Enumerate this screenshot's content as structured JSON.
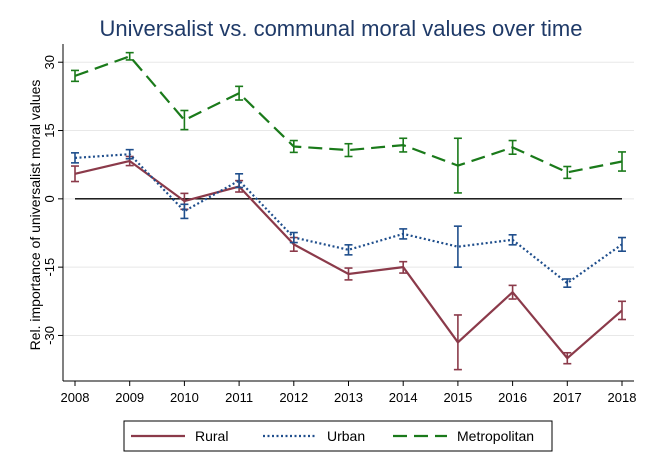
{
  "chart_data": {
    "type": "line",
    "title": "Universalist vs. communal moral values over time",
    "xlabel": "",
    "ylabel": "Rel. importance of universalist moral values",
    "x": [
      2008,
      2009,
      2010,
      2011,
      2012,
      2013,
      2014,
      2015,
      2016,
      2017,
      2018
    ],
    "x_tick_labels": [
      "2008",
      "2009",
      "2010",
      "2011",
      "2012",
      "2013",
      "2014",
      "2015",
      "2016",
      "2017",
      "2018"
    ],
    "ylim": [
      -40,
      34
    ],
    "y_ticks": [
      30,
      15,
      0,
      -15,
      -30
    ],
    "y_tick_labels": [
      "30",
      "15",
      "0",
      "-15",
      "-30"
    ],
    "reference_line": 0,
    "grid": true,
    "legend_position": "bottom",
    "error_bars": true,
    "series": [
      {
        "name": "Rural",
        "color": "#8b3a4a",
        "line_style": "solid",
        "values": [
          5.5,
          8.3,
          -0.5,
          2.7,
          -10,
          -16.5,
          -15,
          -31.5,
          -20.5,
          -35,
          -24.5
        ],
        "lower": [
          3.8,
          7.3,
          -2.3,
          1.5,
          -11.5,
          -17.8,
          -16.3,
          -37.5,
          -22,
          -36.2,
          -26.5
        ],
        "upper": [
          7.2,
          9.3,
          1.2,
          4.0,
          -8.5,
          -15.2,
          -13.8,
          -25.5,
          -19,
          -33.8,
          -22.5
        ]
      },
      {
        "name": "Urban",
        "color": "#1f4e8c",
        "line_style": "dotted",
        "values": [
          9,
          9.8,
          -2.7,
          4,
          -8.5,
          -11.2,
          -7.7,
          -10.5,
          -9,
          -18.5,
          -10
        ],
        "lower": [
          7.9,
          8.8,
          -4.3,
          2.5,
          -9.6,
          -12.3,
          -8.8,
          -15,
          -10.1,
          -19.4,
          -11.5
        ],
        "upper": [
          10.1,
          10.8,
          -1.2,
          5.5,
          -7.4,
          -10.1,
          -6.6,
          -6,
          -7.9,
          -17.6,
          -8.5
        ]
      },
      {
        "name": "Metropolitan",
        "color": "#1a7a1a",
        "line_style": "dashed",
        "values": [
          27,
          31.3,
          17.3,
          23.2,
          11.5,
          10.7,
          11.8,
          7.3,
          11.3,
          5.8,
          8.2
        ],
        "lower": [
          25.8,
          30.5,
          15.2,
          21.7,
          10.2,
          9.3,
          10.3,
          1.3,
          9.8,
          4.5,
          6.1
        ],
        "upper": [
          28.2,
          32.1,
          19.4,
          24.7,
          12.8,
          12.1,
          13.3,
          13.3,
          12.8,
          7.1,
          10.3
        ]
      }
    ]
  }
}
